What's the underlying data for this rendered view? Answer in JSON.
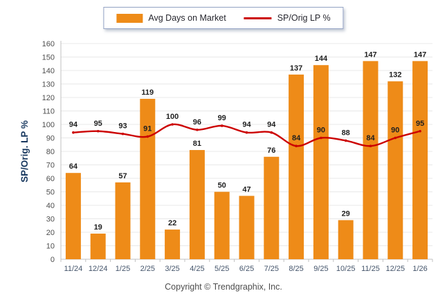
{
  "chart_data": {
    "type": "bar",
    "combo": "bar+line",
    "categories": [
      "11/24",
      "12/24",
      "1/25",
      "2/25",
      "3/25",
      "4/25",
      "5/25",
      "6/25",
      "7/25",
      "8/25",
      "9/25",
      "10/25",
      "11/25",
      "12/25",
      "1/26"
    ],
    "series": [
      {
        "name": "Avg Days on Market",
        "type": "bar",
        "values": [
          64,
          19,
          57,
          119,
          22,
          81,
          50,
          47,
          76,
          137,
          144,
          29,
          147,
          132,
          147
        ]
      },
      {
        "name": "SP/Orig LP %",
        "type": "line",
        "values": [
          94,
          95,
          93,
          91,
          100,
          96,
          99,
          94,
          94,
          84,
          90,
          88,
          84,
          90,
          95
        ]
      }
    ],
    "title": "",
    "xlabel": "",
    "ylabel": "SP/Orig. LP %",
    "ylim": [
      0,
      160
    ],
    "ytick_step": 10,
    "grid": true,
    "legend_position": "top-center",
    "data_labels": true
  },
  "footer": {
    "copyright": "Copyright © Trendgraphix, Inc."
  },
  "colors": {
    "bar": "#EE8B18",
    "line": "#CC0000",
    "value_label": "#1f1f1f",
    "y_axis_title": "#17375E",
    "y_tick_label": "#4d4d4d",
    "x_tick_label": "#44546A",
    "grid_line": "#e8e8e8",
    "axis_line": "#c0c0c0"
  }
}
